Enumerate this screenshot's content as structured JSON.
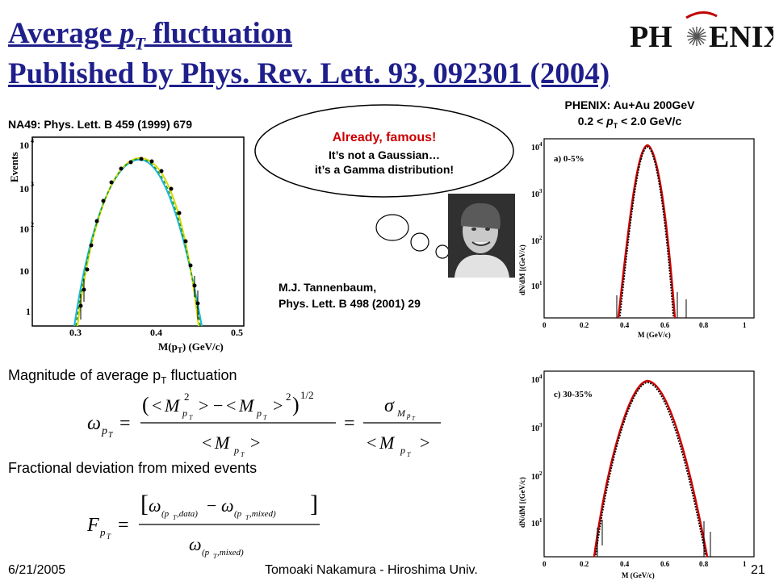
{
  "slide": {
    "title_line1_prefix": "Average ",
    "title_line1_p": "p",
    "title_line1_sub": "T",
    "title_line1_suffix": " fluctuation",
    "title_line2": "Published by Phys. Rev. Lett. 93, 092301 (2004)",
    "logo_left": "PH",
    "logo_right": "ENIX"
  },
  "na49": {
    "caption": "NA49: Phys. Lett. B 459 (1999) 679",
    "ylabel": "Events",
    "xlabel": "M(p",
    "xlabel_sub": "T",
    "xlabel_rest": ") (GeV/c)",
    "xticks": [
      "0.3",
      "0.4",
      "0.5"
    ],
    "yticks": [
      "10",
      "10",
      "10",
      "10",
      "1"
    ],
    "yexp": [
      "4",
      "3",
      "2"
    ]
  },
  "bubble": {
    "line1": "Already, famous!",
    "line2": "It’s not a Gaussian…",
    "line3": "it’s a Gamma distribution!"
  },
  "tannenbaum": {
    "line1": "M.J. Tannenbaum,",
    "line2": "Phys. Lett. B 498 (2001) 29"
  },
  "phenix": {
    "caption_line1": "PHENIX: Au+Au 200GeV",
    "caption_line2_a": "0.2 < ",
    "caption_line2_p": "p",
    "caption_line2_sub": "T",
    "caption_line2_b": " < 2.0 GeV/c",
    "panel_a_label": "a) 0-5%",
    "panel_c_label": "c) 30-35%",
    "ylabel": "dN/dM",
    "ylabel_units": "[(GeV/c)",
    "xticks": [
      "0",
      "0.2",
      "0.4",
      "0.6",
      "0.8",
      "1"
    ],
    "xlabel": "M",
    "xlabel_units": "(GeV/c)",
    "yticks_exp": [
      "4",
      "3",
      "2",
      "1"
    ]
  },
  "eq": {
    "magnitude_label": "Magnitude of average p",
    "magnitude_sub": "T",
    "magnitude_rest": " fluctuation",
    "fractional_label": "Fractional deviation from mixed events",
    "sym_omega": "ω",
    "sym_sigma": "σ",
    "sym_M": "M",
    "sym_F": "F",
    "sym_p": "p",
    "sym_T": "T",
    "sub_data": "(p",
    "sub_data2": ",data)",
    "sub_mixed2": ",mixed)",
    "lt": "<",
    "gt": ">",
    "minus": "−",
    "equals": "=",
    "half": "1/2",
    "two": "2"
  },
  "footer": {
    "date": "6/21/2005",
    "author": "Tomoaki Nakamura - Hiroshima Univ.",
    "page": "21"
  }
}
